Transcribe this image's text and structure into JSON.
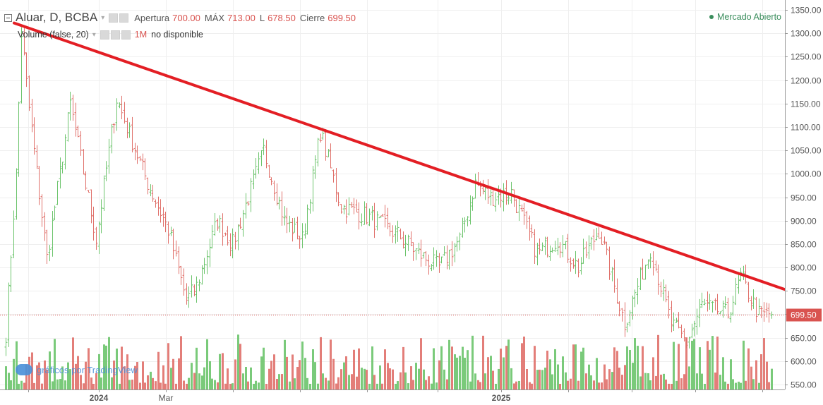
{
  "header": {
    "symbol": "Aluar, D, BCBA",
    "open_label": "Apertura",
    "open_value": "700.00",
    "high_label": "MÁX",
    "high_value": "713.00",
    "low_label": "L",
    "low_value": "678.50",
    "close_label": "Cierre",
    "close_value": "699.50",
    "volume_label": "Volume (false, 20)",
    "volume_value": "1M",
    "volume_status": "no disponible",
    "market_status": "Mercado Abierto"
  },
  "branding": "gráficos por TradingView",
  "colors": {
    "up": "#6cc46c",
    "down": "#e0706a",
    "trendline": "#e31e24",
    "last_price_badge": "#d9534f",
    "grid": "#efefef"
  },
  "chart_data": {
    "type": "ohlc",
    "symbol": "Aluar",
    "interval": "D",
    "exchange": "BCBA",
    "ylim": [
      540,
      1355
    ],
    "y_ticks": [
      550,
      600,
      650,
      700,
      750,
      800,
      850,
      900,
      950,
      1000,
      1050,
      1100,
      1150,
      1200,
      1250,
      1300,
      1350
    ],
    "x_tick_labels": [
      "2024",
      "Mar",
      "2025"
    ],
    "last_price": 699.5,
    "last_price_label": "699.50",
    "trendline": {
      "from": {
        "date": "2023-11-10",
        "price": 1322
      },
      "to": {
        "date": "2025-11-15",
        "price": 753
      }
    },
    "anchors": [
      {
        "i": 0,
        "v": 660
      },
      {
        "i": 4,
        "v": 1000
      },
      {
        "i": 6,
        "v": 1300
      },
      {
        "i": 9,
        "v": 1140
      },
      {
        "i": 16,
        "v": 820
      },
      {
        "i": 25,
        "v": 1150
      },
      {
        "i": 35,
        "v": 860
      },
      {
        "i": 43,
        "v": 1160
      },
      {
        "i": 55,
        "v": 980
      },
      {
        "i": 63,
        "v": 880
      },
      {
        "i": 70,
        "v": 730
      },
      {
        "i": 74,
        "v": 760
      },
      {
        "i": 82,
        "v": 900
      },
      {
        "i": 88,
        "v": 850
      },
      {
        "i": 100,
        "v": 1050
      },
      {
        "i": 108,
        "v": 900
      },
      {
        "i": 115,
        "v": 860
      },
      {
        "i": 122,
        "v": 1090
      },
      {
        "i": 130,
        "v": 930
      },
      {
        "i": 140,
        "v": 910
      },
      {
        "i": 152,
        "v": 870
      },
      {
        "i": 160,
        "v": 830
      },
      {
        "i": 168,
        "v": 800
      },
      {
        "i": 176,
        "v": 860
      },
      {
        "i": 182,
        "v": 980
      },
      {
        "i": 188,
        "v": 950
      },
      {
        "i": 196,
        "v": 960
      },
      {
        "i": 206,
        "v": 830
      },
      {
        "i": 214,
        "v": 860
      },
      {
        "i": 222,
        "v": 800
      },
      {
        "i": 230,
        "v": 880
      },
      {
        "i": 240,
        "v": 680
      },
      {
        "i": 250,
        "v": 840
      },
      {
        "i": 258,
        "v": 680
      },
      {
        "i": 264,
        "v": 640
      },
      {
        "i": 270,
        "v": 720
      },
      {
        "i": 280,
        "v": 700
      },
      {
        "i": 285,
        "v": 780
      },
      {
        "i": 292,
        "v": 700
      },
      {
        "i": 297,
        "v": 699.5
      }
    ]
  }
}
